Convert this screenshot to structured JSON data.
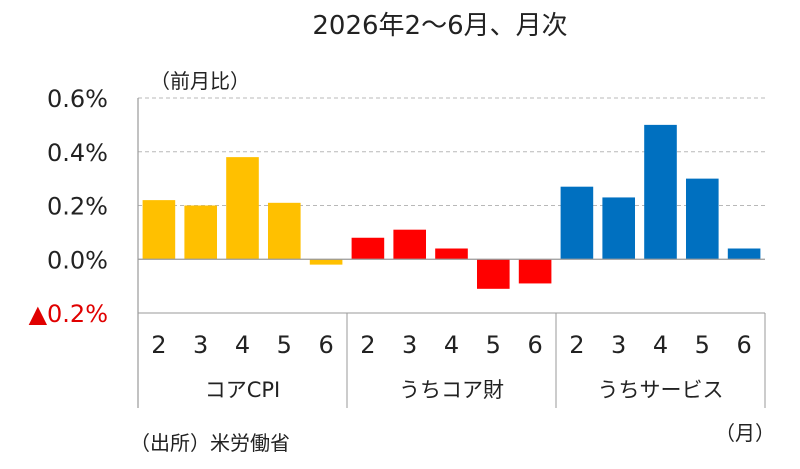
{
  "chart_data": {
    "type": "bar",
    "title": "2026年2～6月、月次",
    "ylabel": "（前月比）",
    "xlabel": "（月）",
    "source": "（出所）米労働省",
    "ylim": [
      -0.2,
      0.6
    ],
    "yticks": [
      {
        "value": 0.6,
        "label": "0.6%"
      },
      {
        "value": 0.4,
        "label": "0.4%"
      },
      {
        "value": 0.2,
        "label": "0.2%"
      },
      {
        "value": 0.0,
        "label": "0.0%"
      },
      {
        "value": -0.2,
        "label": "▲0.2%"
      }
    ],
    "grid": true,
    "groups": [
      {
        "name": "コアCPI",
        "color": "#FFC000",
        "categories": [
          "2",
          "3",
          "4",
          "5",
          "6"
        ],
        "values": [
          0.22,
          0.2,
          0.38,
          0.21,
          -0.02
        ]
      },
      {
        "name": "うちコア財",
        "color": "#FF0000",
        "categories": [
          "2",
          "3",
          "4",
          "5",
          "6"
        ],
        "values": [
          0.08,
          0.11,
          0.04,
          -0.11,
          -0.09
        ]
      },
      {
        "name": "うちサービス",
        "color": "#0070C0",
        "categories": [
          "2",
          "3",
          "4",
          "5",
          "6"
        ],
        "values": [
          0.27,
          0.23,
          0.5,
          0.3,
          0.04
        ]
      }
    ],
    "negative_tick_color": "#E00000"
  }
}
